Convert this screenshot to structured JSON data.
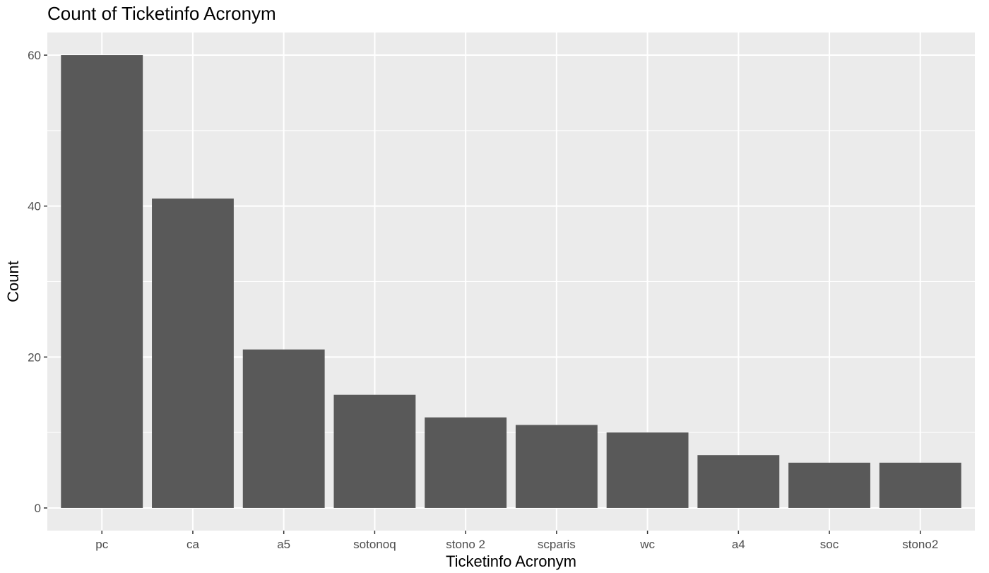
{
  "chart_data": {
    "type": "bar",
    "title": "Count of Ticketinfo Acronym",
    "xlabel": "Ticketinfo Acronym",
    "ylabel": "Count",
    "categories": [
      "pc",
      "ca",
      "a5",
      "sotonoq",
      "stono 2",
      "scparis",
      "wc",
      "a4",
      "soc",
      "stono2"
    ],
    "values": [
      60,
      41,
      21,
      15,
      12,
      11,
      10,
      7,
      6,
      6
    ],
    "ylim": [
      -3,
      63
    ],
    "yticks": [
      0,
      20,
      40,
      60
    ],
    "grid": true,
    "legend": "none",
    "colors": {
      "bar": "#595959",
      "panel": "#ebebeb",
      "grid": "#ffffff",
      "tick_text": "#4d4d4d",
      "axis_text": "#000000"
    }
  }
}
